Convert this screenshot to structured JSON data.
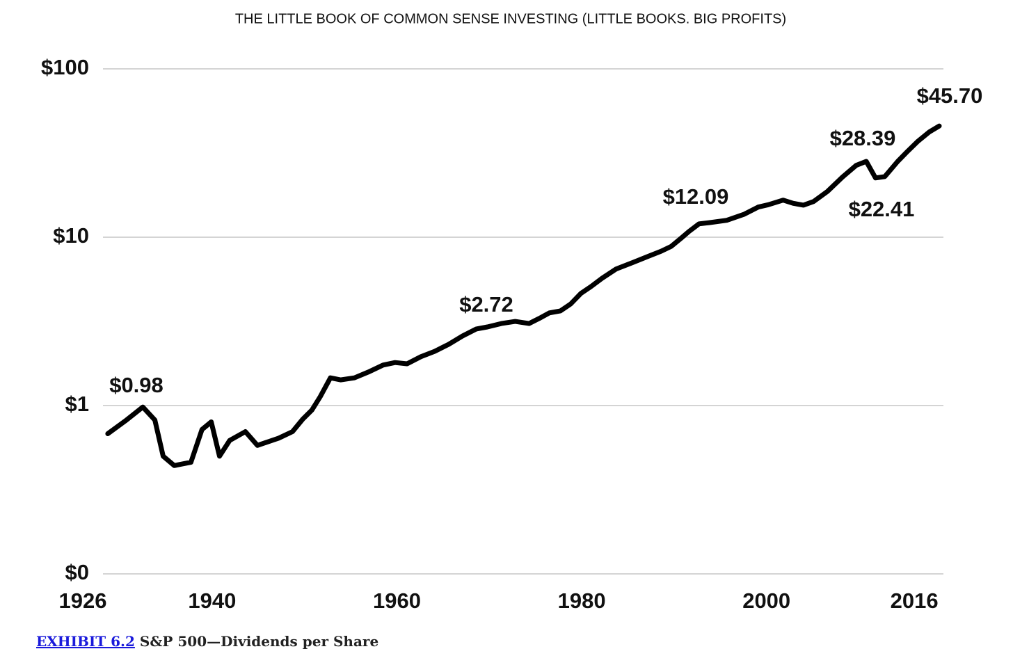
{
  "page_title": "THE LITTLE BOOK OF COMMON SENSE INVESTING (LITTLE BOOKS. BIG PROFITS)",
  "caption": {
    "exhibit": "EXHIBIT 6.2",
    "text": "S&P 500—Dividends per Share"
  },
  "chart_data": {
    "type": "line",
    "color": "#000000",
    "log_scale": true,
    "grid": true,
    "x": [
      1928.7,
      1930.6,
      1932.5,
      1933.8,
      1934.7,
      1935.9,
      1937.7,
      1938.9,
      1939.9,
      1940.8,
      1941.9,
      1943.6,
      1944.9,
      1947.2,
      1948.7,
      1949.8,
      1950.8,
      1951.7,
      1952.8,
      1953.9,
      1955.4,
      1956.9,
      1958.5,
      1959.8,
      1961.1,
      1962.6,
      1964.1,
      1965.6,
      1967.1,
      1968.6,
      1969.8,
      1971.3,
      1972.8,
      1974.3,
      1975.4,
      1976.5,
      1977.7,
      1978.8,
      1979.9,
      1981.0,
      1982.2,
      1983.7,
      1985.6,
      1987.1,
      1988.6,
      1989.7,
      1990.8,
      1991.6,
      1992.7,
      1993.8,
      1995.7,
      1997.6,
      1999.1,
      2000.2,
      2001.8,
      2002.9,
      2004.0,
      2005.1,
      2006.6,
      2008.2,
      2009.7,
      2010.8,
      2011.8,
      2012.8,
      2014.2,
      2015.3,
      2016.4,
      2017.6,
      2018.7
    ],
    "values": [
      0.68,
      0.81,
      0.98,
      0.82,
      0.5,
      0.44,
      0.46,
      0.72,
      0.8,
      0.5,
      0.62,
      0.7,
      0.58,
      0.64,
      0.7,
      0.83,
      0.94,
      1.13,
      1.46,
      1.42,
      1.46,
      1.58,
      1.74,
      1.8,
      1.77,
      1.95,
      2.1,
      2.31,
      2.59,
      2.85,
      2.93,
      3.07,
      3.16,
      3.07,
      3.29,
      3.55,
      3.65,
      4.01,
      4.63,
      5.09,
      5.7,
      6.46,
      7.1,
      7.66,
      8.26,
      8.83,
      9.91,
      10.8,
      12.0,
      12.2,
      12.6,
      13.7,
      15.1,
      15.6,
      16.6,
      15.9,
      15.5,
      16.3,
      18.7,
      22.7,
      26.7,
      28.2,
      22.5,
      22.9,
      28.2,
      32.5,
      37.2,
      42.1,
      45.8
    ],
    "annotations": [
      "$0.98",
      "$2.72",
      "$12.09",
      "$28.39",
      "$22.41",
      "$45.70"
    ],
    "xlim": [
      1926,
      2019
    ],
    "xticks": [
      1926,
      1940,
      1960,
      1980,
      2000,
      2016
    ],
    "ylim": [
      0.1,
      100
    ],
    "yticks": [
      {
        "value": 0.1,
        "label": "$0"
      },
      {
        "value": 1,
        "label": "$1"
      },
      {
        "value": 10,
        "label": "$10"
      },
      {
        "value": 100,
        "label": "$100"
      }
    ]
  }
}
